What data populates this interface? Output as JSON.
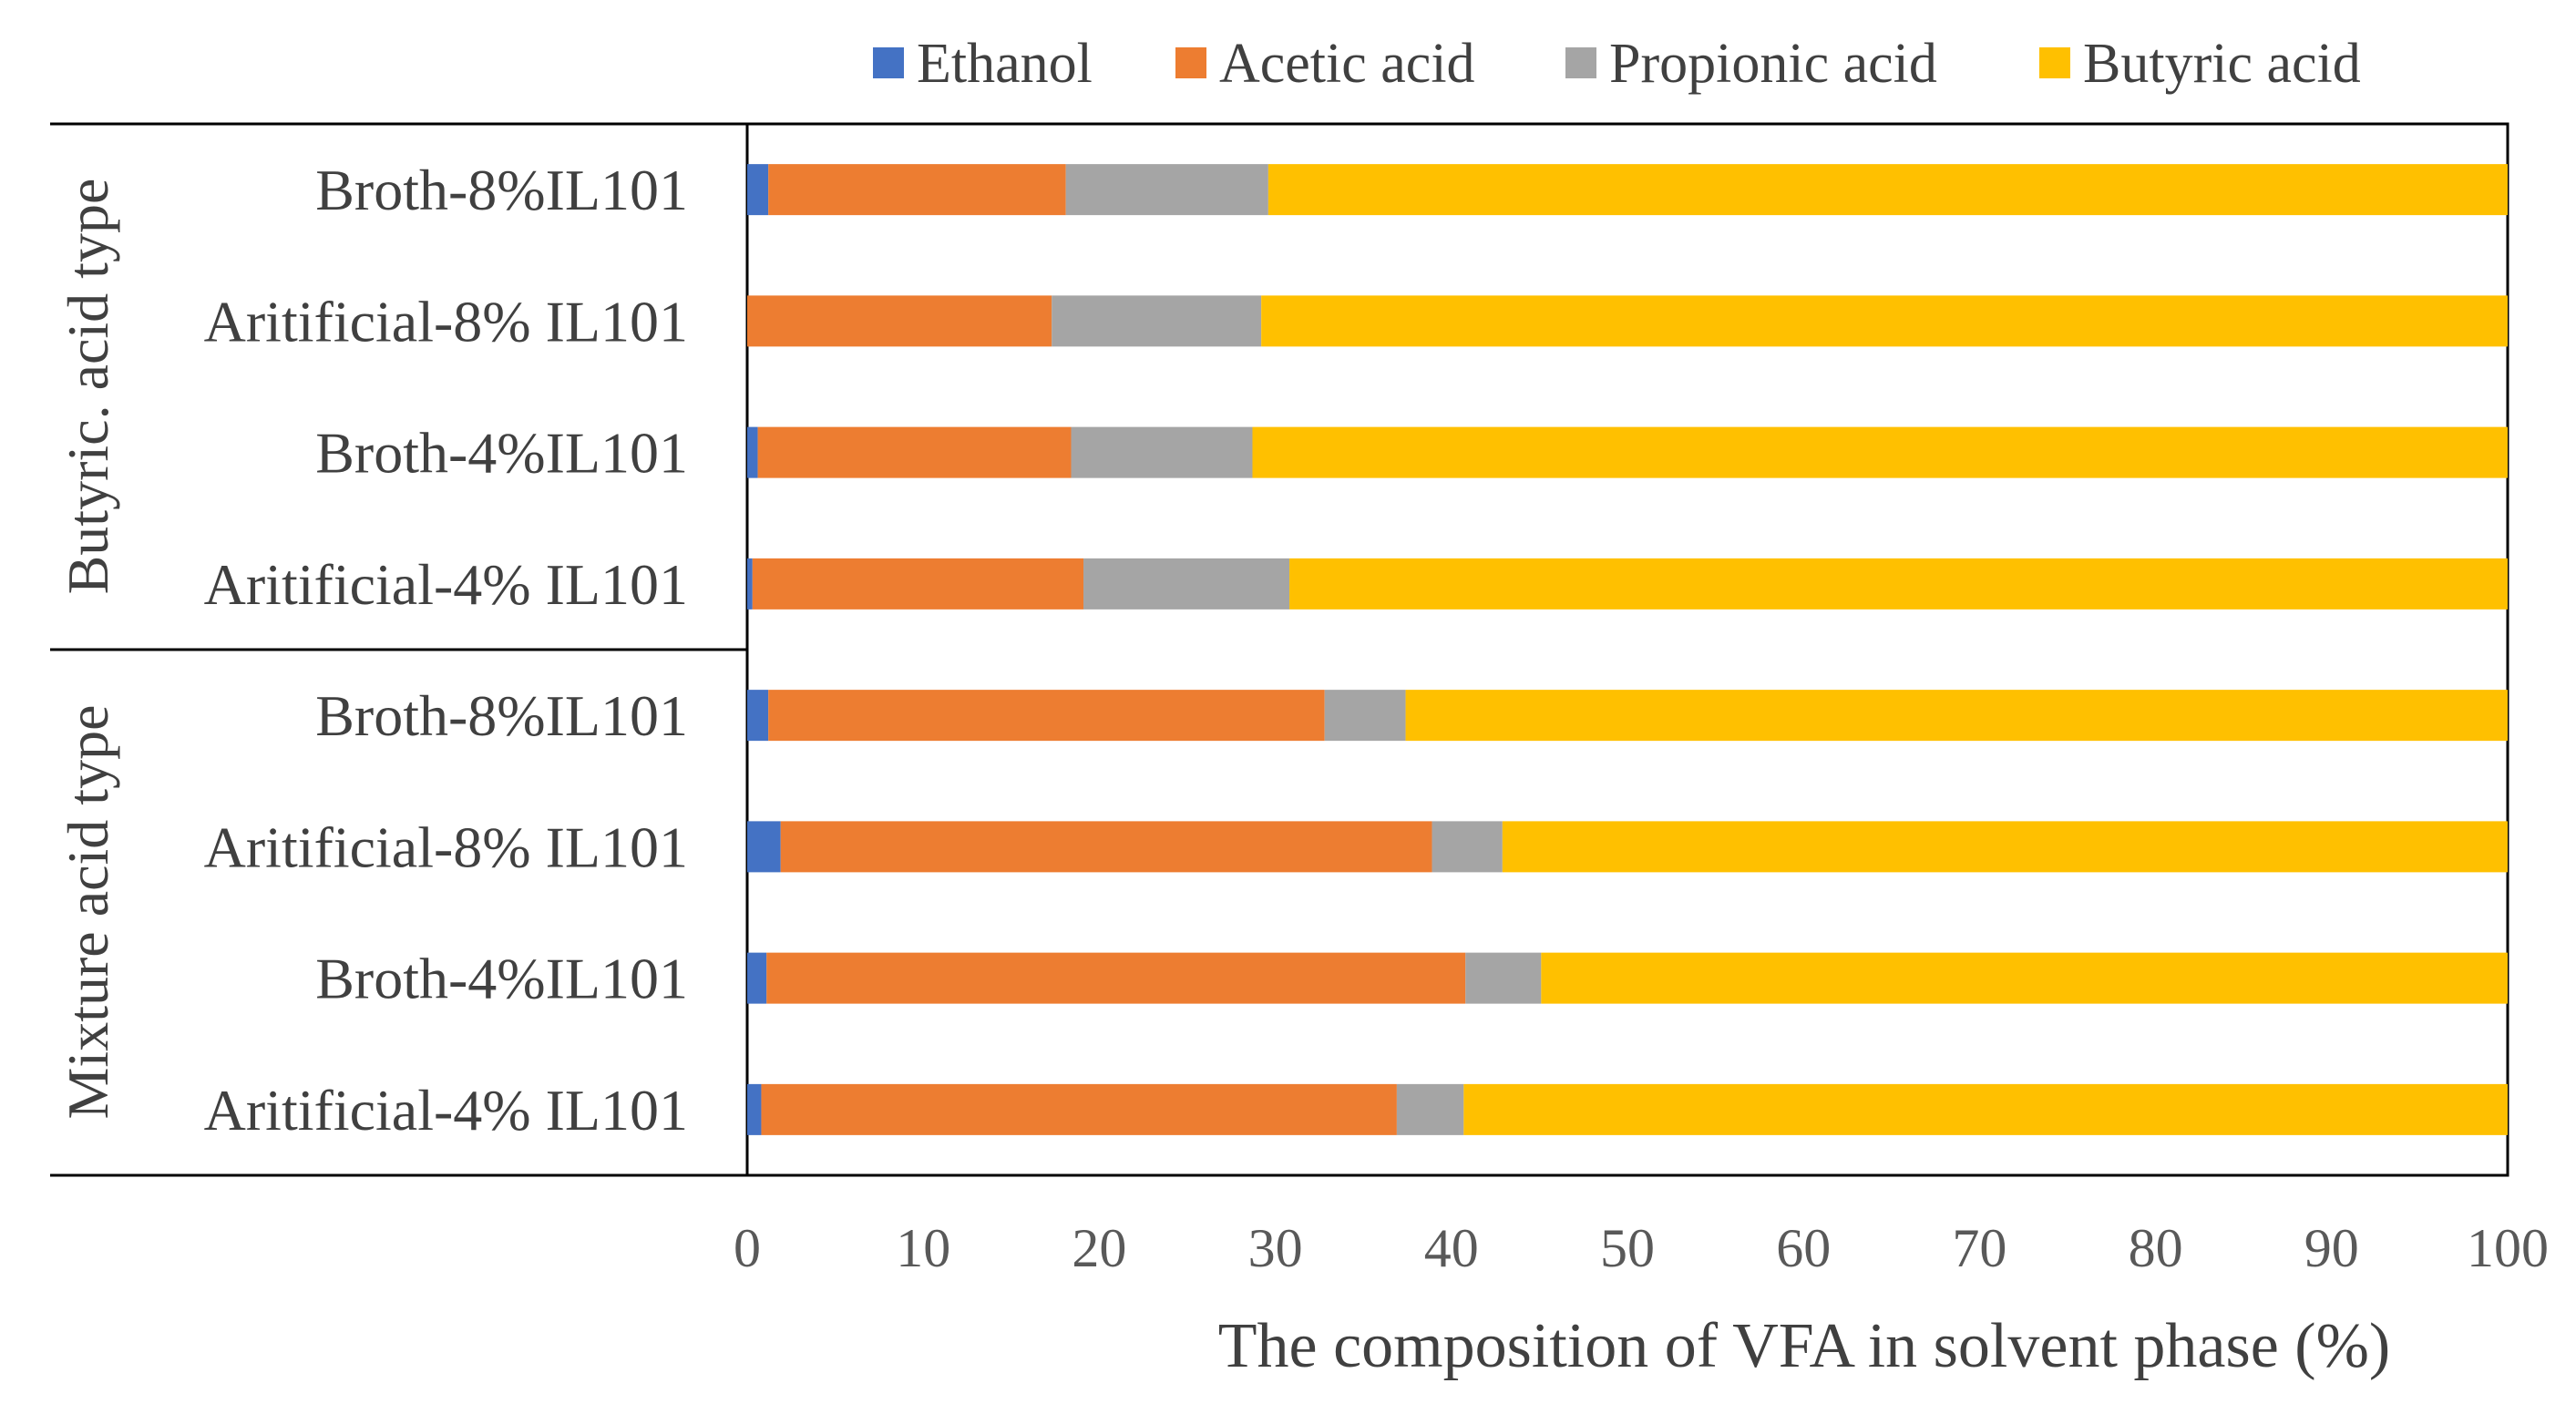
{
  "chart_data": {
    "type": "bar",
    "orientation": "horizontal",
    "stacked": true,
    "title": "",
    "xlabel": "The composition of VFA in solvent phase (%)",
    "ylabel": "",
    "xlim": [
      0,
      100
    ],
    "xticks": [
      "0",
      "10",
      "20",
      "30",
      "40",
      "50",
      "60",
      "70",
      "80",
      "90",
      "100"
    ],
    "grid": false,
    "legend_position": "top",
    "groups": [
      {
        "label": "Butyric. acid type",
        "categories": [
          "Broth-8%IL101",
          "Aritificial-8% IL101",
          "Broth-4%IL101",
          "Aritificial-4% IL101"
        ]
      },
      {
        "label": "Mixture acid type",
        "categories": [
          "Broth-8%IL101",
          "Aritificial-8% IL101",
          "Broth-4%IL101",
          "Aritificial-4% IL101"
        ]
      }
    ],
    "series": [
      {
        "name": "Ethanol",
        "color": "#4472C4",
        "values": [
          1.2,
          0.0,
          0.6,
          0.3,
          1.2,
          1.9,
          1.1,
          0.8
        ]
      },
      {
        "name": "Acetic acid",
        "color": "#ED7D31",
        "values": [
          16.9,
          17.3,
          17.8,
          18.8,
          31.6,
          37.0,
          39.7,
          36.1
        ]
      },
      {
        "name": "Propionic acid",
        "color": "#A5A5A5",
        "values": [
          11.5,
          11.9,
          10.3,
          11.7,
          4.6,
          4.0,
          4.3,
          3.8
        ]
      },
      {
        "name": "Butyric acid",
        "color": "#FFC000",
        "values": [
          70.4,
          70.8,
          71.3,
          69.2,
          62.6,
          57.1,
          54.9,
          59.3
        ]
      }
    ]
  }
}
